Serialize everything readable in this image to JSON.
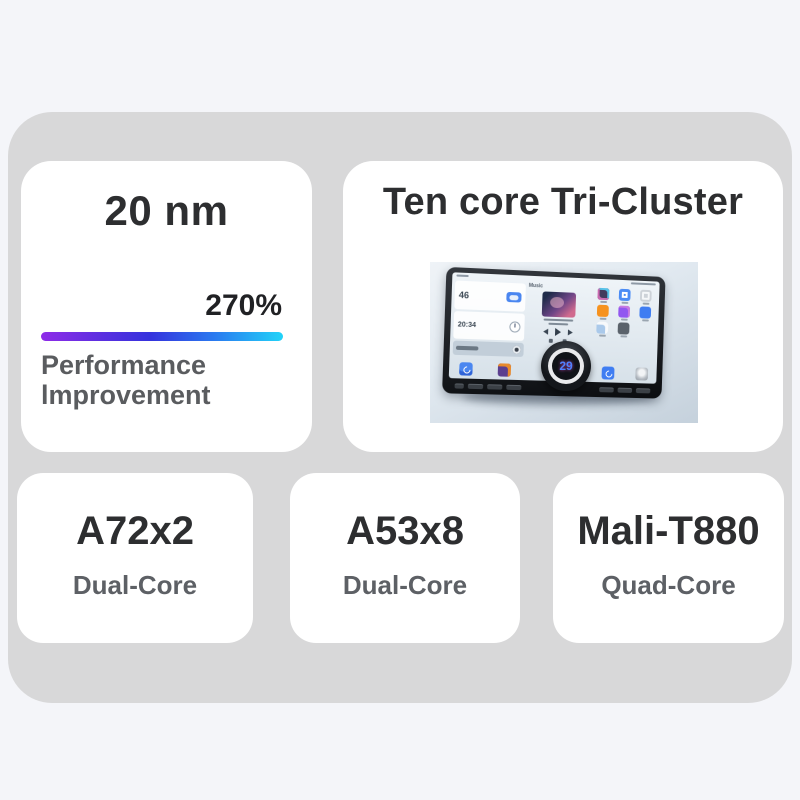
{
  "page": {
    "background": "#f4f5f9",
    "panel_color": "#d8d8d9",
    "card_color": "#ffffff",
    "title_color": "#2d2e30",
    "subtitle_color": "#5d6065"
  },
  "process_card": {
    "title": "20 nm",
    "percent": "270%",
    "caption_line1": "Performance",
    "caption_line2": "lmprovement",
    "bar_gradient": [
      "#8f2ce8",
      "#3532dd",
      "#22d3f8"
    ]
  },
  "tencore_card": {
    "title": "Ten core Tri-Cluster",
    "device": {
      "weather_temp": "46",
      "clock_time": "20:34",
      "music_label": "Music",
      "knob_value": "29",
      "knob_value_color": "#4f82ff"
    }
  },
  "spec_cards": [
    {
      "title": "A72x2",
      "subtitle": "Dual-Core"
    },
    {
      "title": "A53x8",
      "subtitle": "Dual-Core"
    },
    {
      "title": "Mali-T880",
      "subtitle": "Quad-Core"
    }
  ],
  "icons": {
    "weather": "cloud-icon",
    "clock": "analog-clock-icon",
    "music_controls": [
      "previous-track-icon",
      "play-icon",
      "next-track-icon"
    ],
    "apps": [
      "app-drawer-icon",
      "file-manager-icon",
      "settings-icon",
      "nes-game-icon",
      "gallery-icon",
      "phone-icon",
      "weather-app-icon",
      "dvr-icon"
    ],
    "dock": [
      "carplay-icon",
      "media-app-icon",
      "volume-knob",
      "bluetooth-phone-icon",
      "settings-dial-icon"
    ]
  }
}
